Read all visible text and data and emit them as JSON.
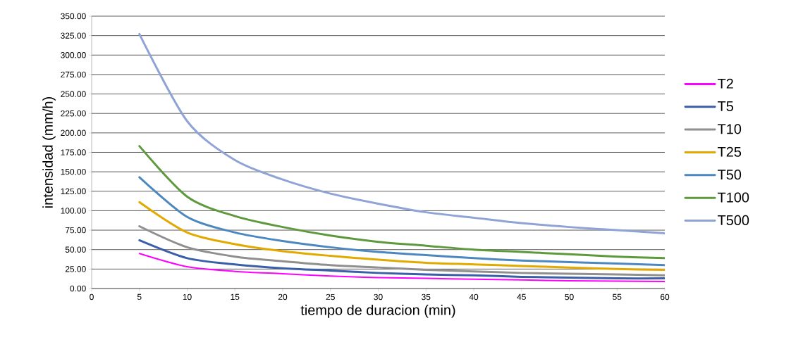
{
  "chart_data": {
    "type": "line",
    "xlabel": "tiempo de duracion (min)",
    "ylabel": "intensidad (mm/h)",
    "x": [
      5,
      10,
      15,
      20,
      25,
      30,
      35,
      40,
      45,
      50,
      55,
      60
    ],
    "xlim": [
      0,
      60
    ],
    "xticks": [
      0,
      5,
      10,
      15,
      20,
      25,
      30,
      35,
      40,
      45,
      50,
      55,
      60
    ],
    "ylim": [
      0,
      350
    ],
    "yticks": [
      {
        "value": 0,
        "label": "0.00"
      },
      {
        "value": 25,
        "label": "25.00"
      },
      {
        "value": 50,
        "label": "50.00"
      },
      {
        "value": 75,
        "label": "75.00"
      },
      {
        "value": 100,
        "label": "100.00"
      },
      {
        "value": 125,
        "label": "125.00"
      },
      {
        "value": 150,
        "label": "150.00"
      },
      {
        "value": 175,
        "label": "175.00"
      },
      {
        "value": 200,
        "label": "200.00"
      },
      {
        "value": 225,
        "label": "225.00"
      },
      {
        "value": 250,
        "label": "250.00"
      },
      {
        "value": 275,
        "label": "275.00"
      },
      {
        "value": 300,
        "label": "300.00"
      },
      {
        "value": 325,
        "label": "325.00"
      },
      {
        "value": 350,
        "label": "350.00"
      }
    ],
    "grid": "y",
    "legend": "right",
    "marker": "none",
    "series": [
      {
        "name": "T2",
        "color": "#ff00ff",
        "values": [
          45,
          28,
          22,
          19,
          16,
          14,
          13,
          12,
          11,
          10,
          9.5,
          9
        ]
      },
      {
        "name": "T5",
        "color": "#3a5ea8",
        "values": [
          62,
          39,
          31,
          26,
          23,
          20,
          18,
          17,
          15,
          14,
          13,
          13
        ]
      },
      {
        "name": "T10",
        "color": "#8f8f8f",
        "values": [
          80,
          53,
          41,
          35,
          30,
          27,
          24,
          22,
          20,
          19,
          18,
          17
        ]
      },
      {
        "name": "T25",
        "color": "#e2aa00",
        "values": [
          111,
          72,
          57,
          48,
          42,
          37,
          33,
          31,
          29,
          27,
          25,
          24
        ]
      },
      {
        "name": "T50",
        "color": "#4c88bf",
        "values": [
          143,
          92,
          72,
          61,
          53,
          47,
          43,
          39,
          36,
          34,
          32,
          30
        ]
      },
      {
        "name": "T100",
        "color": "#5e9a3d",
        "values": [
          183,
          118,
          93,
          79,
          68,
          60,
          55,
          50,
          47,
          44,
          41,
          39
        ]
      },
      {
        "name": "T500",
        "color": "#8fa3d6",
        "values": [
          327,
          215,
          165,
          140,
          122,
          109,
          98,
          91,
          84,
          79,
          75,
          71
        ]
      }
    ]
  }
}
